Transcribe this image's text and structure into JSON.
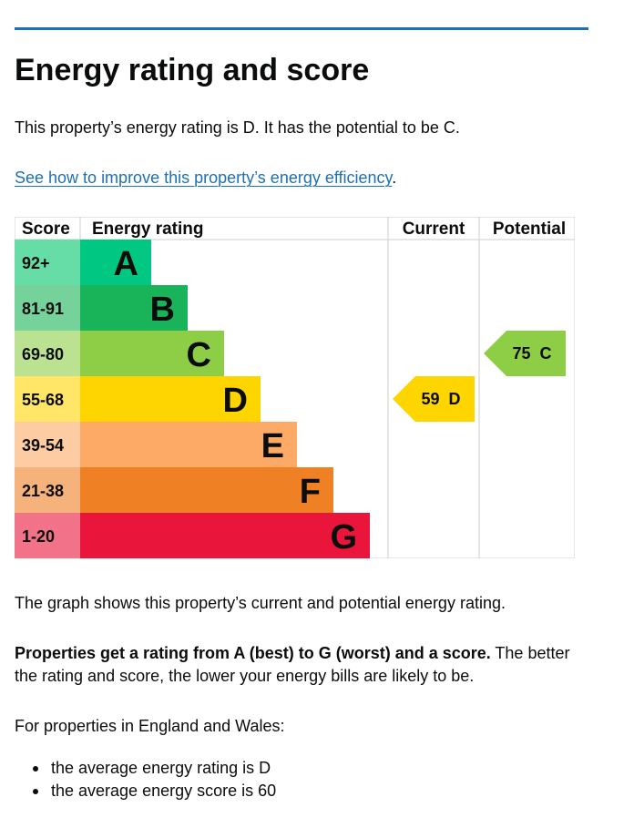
{
  "heading": "Energy rating and score",
  "summary": "This property’s energy rating is D. It has the potential to be C.",
  "improve_link": "See how to improve this property’s energy efficiency",
  "improve_link_suffix": ".",
  "table": {
    "headers": {
      "score": "Score",
      "rating": "Energy rating",
      "current": "Current",
      "potential": "Potential"
    },
    "bands": [
      {
        "score": "92+",
        "letter": "A",
        "color": "#00c781",
        "score_bg": "#66dda7"
      },
      {
        "score": "81-91",
        "letter": "B",
        "color": "#19b459",
        "score_bg": "#75d29b"
      },
      {
        "score": "69-80",
        "letter": "C",
        "color": "#8dce46",
        "score_bg": "#bbe290"
      },
      {
        "score": "55-68",
        "letter": "D",
        "color": "#ffd500",
        "score_bg": "#ffe666"
      },
      {
        "score": "39-54",
        "letter": "E",
        "color": "#fcaa65",
        "score_bg": "#fdcca3"
      },
      {
        "score": "21-38",
        "letter": "F",
        "color": "#ef8023",
        "score_bg": "#f5b37b"
      },
      {
        "score": "1-20",
        "letter": "G",
        "color": "#e9153b",
        "score_bg": "#f27389"
      }
    ],
    "current": {
      "label": "59 D",
      "band": "D",
      "color": "#ffd500"
    },
    "potential": {
      "label": "75 C",
      "band": "C",
      "color": "#8dce46"
    }
  },
  "graph_note": "The graph shows this property’s current and potential energy rating.",
  "rating_bold": "Properties get a rating from A (best) to G (worst) and a score.",
  "rating_rest": " The better the rating and score, the lower your energy bills are likely to be.",
  "regional_intro": "For properties in England and Wales:",
  "averages": [
    "the average energy rating is D",
    "the average energy score is 60"
  ],
  "colors": {
    "link": "#1d70b8",
    "rule": "#1d70b8",
    "text": "#0b0c0c",
    "border": "#cccccc"
  }
}
